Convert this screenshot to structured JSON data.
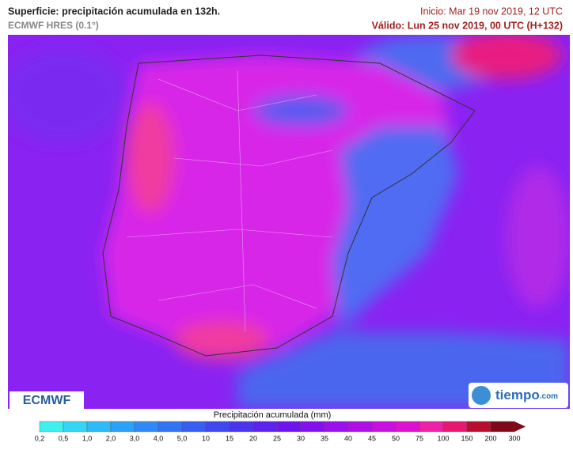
{
  "header": {
    "title": "Superficie: precipitación acumulada en 132h.",
    "model": "ECMWF HRES (0.1°)",
    "init": "Inicio: Mar 19 nov 2019, 12 UTC",
    "valid": "Válido: Lun 25 nov 2019, 00 UTC (H+132)"
  },
  "logos": {
    "left": "ECMWF",
    "right": "tiempo",
    "right_suffix": ".com"
  },
  "legend": {
    "title": "Precipitación acumulada (mm)",
    "labels": [
      "0,2",
      "0,5",
      "1,0",
      "2,0",
      "3,0",
      "4,0",
      "5,0",
      "10",
      "15",
      "20",
      "25",
      "30",
      "35",
      "40",
      "45",
      "50",
      "75",
      "100",
      "150",
      "200",
      "300"
    ],
    "colors": [
      "#3ef0f0",
      "#33d6f5",
      "#2bbcf7",
      "#2aa2f8",
      "#2d8af6",
      "#3274f4",
      "#375ef2",
      "#3d48f0",
      "#4a34ef",
      "#5c22f0",
      "#6f14f0",
      "#8410f0",
      "#9a10ee",
      "#b010e8",
      "#c810e0",
      "#e010d0",
      "#f020a8",
      "#e81870",
      "#b80c30",
      "#800818"
    ]
  }
}
